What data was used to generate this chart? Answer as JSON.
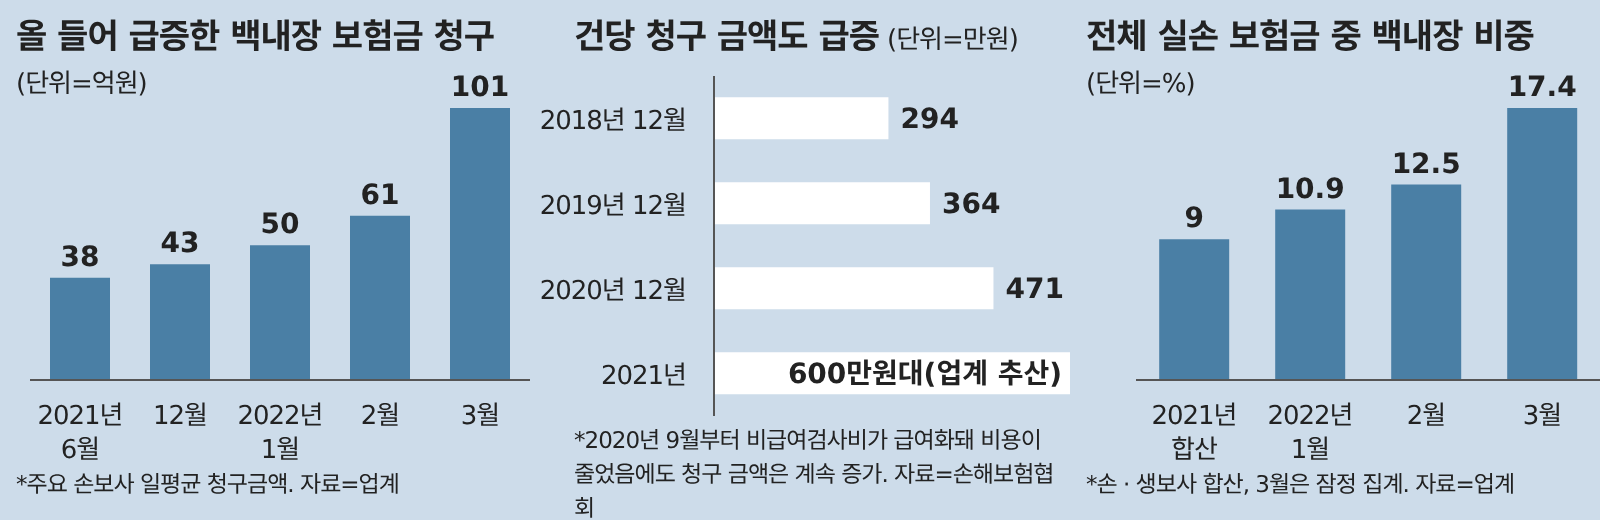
{
  "chart_data": [
    {
      "type": "bar",
      "title": "올 들어 급증한 백내장 보험금 청구",
      "subtitle": "(단위=억원)",
      "categories": [
        "2021년\n6월",
        "12월",
        "2022년\n1월",
        "2월",
        "3월"
      ],
      "values": [
        38,
        43,
        50,
        61,
        101
      ],
      "color": "#4a7fa5",
      "data_labels": true,
      "annotations": [
        "*주요 손보사 일평균 청구금액. 자료=업계"
      ]
    },
    {
      "type": "bar",
      "orientation": "horizontal",
      "title": "건당 청구 금액도 급증",
      "subtitle": "(단위=만원)",
      "categories": [
        "2018년 12월",
        "2019년 12월",
        "2020년 12월",
        "2021년"
      ],
      "values": [
        294,
        364,
        471,
        600
      ],
      "color": "#ffffff",
      "value_labels": [
        "294",
        "364",
        "471",
        "600만원대(업계 추산)"
      ],
      "annotations": [
        "*2020년 9월부터 비급여검사비가 급여화돼 비용이 줄었음에도 청구 금액은 계속 증가. 자료=손해보험협회"
      ]
    },
    {
      "type": "bar",
      "title": "전체 실손 보험금 중 백내장 비중",
      "subtitle": "(단위=%)",
      "categories": [
        "2021년\n합산",
        "2022년\n1월",
        "2월",
        "3월"
      ],
      "values": [
        9,
        10.9,
        12.5,
        17.4
      ],
      "color": "#4a7fa5",
      "data_labels": true,
      "annotations": [
        "*손 · 생보사 합산, 3월은 잠정 집계. 자료=업계"
      ]
    }
  ]
}
